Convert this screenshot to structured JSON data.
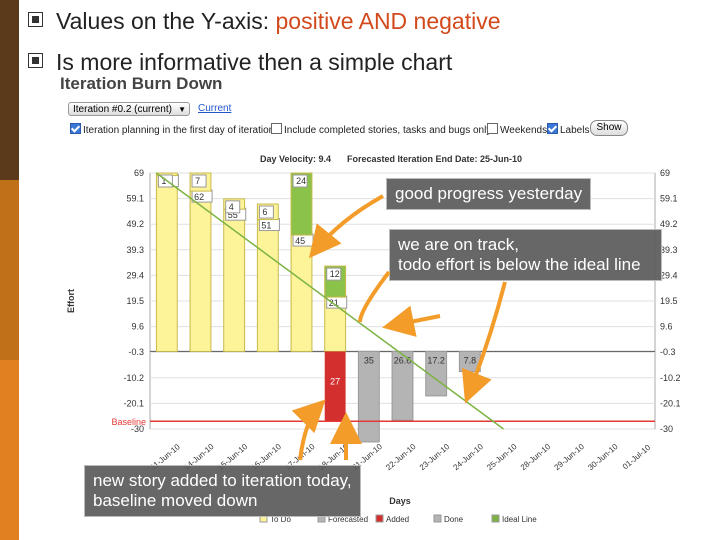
{
  "slide": {
    "bullets": [
      {
        "prefix": "Values on the Y-axis: ",
        "highlight": "positive AND negative",
        "suffix": ""
      },
      {
        "prefix": "Is more informative then a simple chart",
        "highlight": "",
        "suffix": ""
      }
    ],
    "highlight_color": "#d24a1c"
  },
  "app": {
    "title": "Iteration Burn Down",
    "iteration_select": "Iteration #0.2 (current)",
    "current_link": "Current",
    "options": {
      "planning_label": "Iteration planning in the first day of iteration",
      "include_label": "Include completed stories, tasks and bugs only",
      "weekends_label": "Weekends",
      "labels_label": "Labels",
      "show_button": "Show"
    },
    "day_velocity": "Day Velocity: 9.4",
    "forecast_end": "Forecasted Iteration End Date: 25-Jun-10",
    "baseline_label": "Baseline",
    "y_axis_label": "Effort",
    "x_axis_label": "Days",
    "legend": [
      "To Do",
      "Forecasted",
      "Added",
      "Done",
      "Ideal Line"
    ]
  },
  "callouts": {
    "good_progress": "good progress yesterday",
    "on_track_1": "we are on track,",
    "on_track_2": "todo effort is below the ideal line",
    "new_story_1": "new story added to iteration today,",
    "new_story_2": "baseline moved down"
  },
  "colors": {
    "todo": "#fdf49a",
    "done": "#8bc34a",
    "added": "#d32f2f",
    "forecasted": "#b4b4b4",
    "ideal": "#7cb342",
    "baseline": "#e53935"
  },
  "chart_data": {
    "type": "bar",
    "title": "Iteration Burn Down",
    "xlabel": "Days",
    "ylabel": "Effort",
    "y_ticks": [
      "69",
      "59.1",
      "49.2",
      "39.3",
      "29.4",
      "19.5",
      "9.6",
      "-0.3",
      "-10.2",
      "-20.1",
      "-30"
    ],
    "ylim": [
      -30,
      69
    ],
    "categories": [
      "11-Jun-10",
      "14-Jun-10",
      "15-Jun-10",
      "16-Jun-10",
      "17-Jun-10",
      "18-Jun-10",
      "21-Jun-10",
      "22-Jun-10",
      "23-Jun-10",
      "24-Jun-10",
      "25-Jun-10",
      "28-Jun-10",
      "29-Jun-10",
      "30-Jun-10",
      "01-Jul-10"
    ],
    "series": [
      {
        "name": "To Do",
        "values": [
          68,
          62,
          55,
          51,
          45,
          21,
          null,
          null,
          null,
          null,
          null,
          null,
          null,
          null,
          null
        ],
        "labels": [
          "68",
          "62",
          "55",
          "51",
          "45",
          "21",
          "",
          "",
          "",
          "",
          "",
          "",
          "",
          "",
          ""
        ]
      },
      {
        "name": "Done",
        "values": [
          1,
          7,
          4,
          6,
          24,
          12,
          null,
          null,
          null,
          null,
          null,
          null,
          null,
          null,
          null
        ],
        "labels": [
          "1",
          "7",
          "4",
          "6",
          "24",
          "12",
          "",
          "",
          "",
          "",
          "",
          "",
          "",
          "",
          ""
        ]
      },
      {
        "name": "Added",
        "values": [
          null,
          null,
          null,
          null,
          null,
          -27,
          null,
          null,
          null,
          null,
          null,
          null,
          null,
          null,
          null
        ],
        "labels": [
          "",
          "",
          "",
          "",
          "",
          "27",
          "",
          "",
          "",
          "",
          "",
          "",
          "",
          "",
          ""
        ]
      },
      {
        "name": "Forecasted",
        "values": [
          null,
          null,
          null,
          null,
          null,
          null,
          35,
          26.6,
          17.2,
          7.8,
          null,
          null,
          null,
          null,
          null
        ],
        "labels": [
          "",
          "",
          "",
          "",
          "",
          "",
          "35",
          "26.6",
          "17.2",
          "7.8",
          "",
          "",
          "",
          "",
          ""
        ]
      }
    ],
    "ideal_line": {
      "name": "Ideal Line",
      "start": 69,
      "end_category": "25-Jun-10",
      "end_value": -30
    },
    "baseline": -27,
    "legend_placement": "bottom",
    "grid": true
  }
}
